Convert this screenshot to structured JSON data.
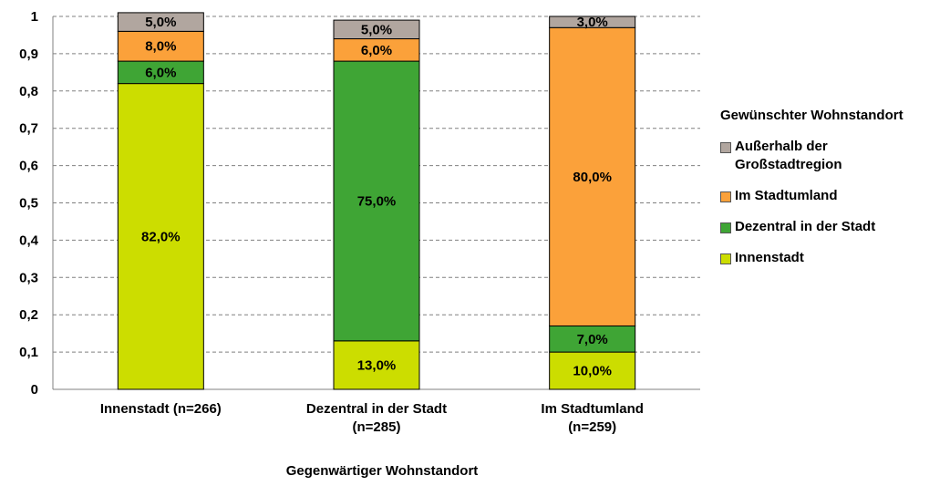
{
  "chart_data": {
    "type": "bar",
    "stacked": true,
    "categories": [
      "Innenstadt (n=266)",
      "Dezentral in der Stadt (n=285)",
      "Im Stadtumland (n=259)"
    ],
    "series": [
      {
        "name": "Innenstadt",
        "color": "#ccdd00",
        "values": [
          0.82,
          0.13,
          0.1
        ],
        "labels": [
          "82,0%",
          "13,0%",
          "10,0%"
        ]
      },
      {
        "name": "Dezentral in der Stadt",
        "color": "#3fa535",
        "values": [
          0.06,
          0.75,
          0.07
        ],
        "labels": [
          "6,0%",
          "75,0%",
          "7,0%"
        ]
      },
      {
        "name": "Im Stadtumland",
        "color": "#fba13a",
        "values": [
          0.08,
          0.06,
          0.8
        ],
        "labels": [
          "8,0%",
          "6,0%",
          "80,0%"
        ]
      },
      {
        "name": "Außerhalb der\nGroßstadtregion",
        "color": "#b1a69f",
        "values": [
          0.05,
          0.05,
          0.03
        ],
        "labels": [
          "5,0%",
          "5,0%",
          "3,0%"
        ]
      }
    ],
    "yticks": [
      "0",
      "0,1",
      "0,2",
      "0,3",
      "0,4",
      "0,5",
      "0,6",
      "0,7",
      "0,8",
      "0,9",
      "1"
    ],
    "ylim": [
      0,
      1
    ],
    "xlabel": "Gegenwärtiger Wohnstandort",
    "legend_title": "Gewünschter Wohnstandort",
    "legend_position": "right",
    "grid": "horizontal-dashed"
  }
}
